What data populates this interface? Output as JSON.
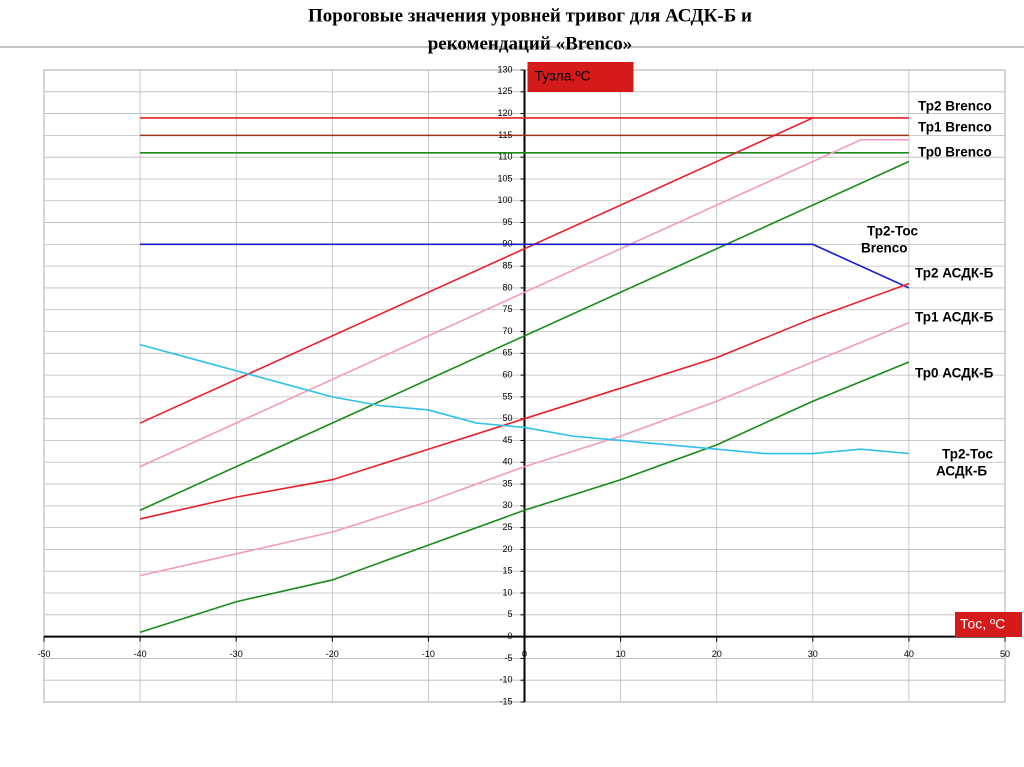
{
  "chart_data": {
    "type": "line",
    "title": [
      "Пороговые значения уровней  тривог для  АСДК-Б и",
      "рекомендаций «Brenco»"
    ],
    "y_label": "Тузла,ºС",
    "x_label": "Тос, ºС",
    "xlim": [
      -50,
      50
    ],
    "xticks": [
      -50,
      -40,
      -30,
      -20,
      -10,
      0,
      10,
      20,
      30,
      40,
      50
    ],
    "ylim": [
      -15,
      130
    ],
    "yticks": [
      -15,
      -10,
      -5,
      0,
      5,
      10,
      15,
      20,
      25,
      30,
      35,
      40,
      45,
      50,
      55,
      60,
      65,
      70,
      75,
      80,
      85,
      90,
      95,
      100,
      105,
      110,
      115,
      120,
      125,
      130
    ],
    "grid": true,
    "axis_color": "#d41a1a",
    "series": [
      {
        "name": [
          "Тр2 Brenco"
        ],
        "color": "#e8202a",
        "x": [
          -40,
          40
        ],
        "values": [
          119,
          119
        ]
      },
      {
        "name": [
          "Тр1 Brenco"
        ],
        "color": "#a0301a",
        "x": [
          -40,
          40
        ],
        "values": [
          115,
          115
        ]
      },
      {
        "name": [
          "Тр0 Brenco"
        ],
        "color": "#1a8a1a",
        "x": [
          -40,
          40
        ],
        "values": [
          111,
          111
        ]
      },
      {
        "color": "#e8202a",
        "x": [
          -40,
          30
        ],
        "values": [
          49,
          119
        ]
      },
      {
        "color": "#f29ac0",
        "x": [
          -40,
          35,
          40
        ],
        "values": [
          39,
          114,
          114
        ]
      },
      {
        "color": "#1a8a1a",
        "x": [
          -40,
          40
        ],
        "values": [
          29,
          109
        ]
      },
      {
        "name": [
          "Тр2-Тос",
          "Brenco"
        ],
        "color": "#1a1ad0",
        "x": [
          -40,
          30,
          40
        ],
        "values": [
          90,
          90,
          80
        ]
      },
      {
        "name": [
          "Тр2 АСДК-Б"
        ],
        "color": "#e8202a",
        "x": [
          -40,
          -30,
          -20,
          -10,
          0,
          10,
          20,
          30,
          40
        ],
        "values": [
          27,
          32,
          36,
          43,
          50,
          57,
          64,
          73,
          81
        ]
      },
      {
        "name": [
          "Тр1 АСДК-Б"
        ],
        "color": "#f29ac0",
        "x": [
          -40,
          -30,
          -20,
          -10,
          0,
          10,
          20,
          30,
          40
        ],
        "values": [
          14,
          19,
          24,
          31,
          39,
          46,
          54,
          63,
          72
        ]
      },
      {
        "name": [
          "Тр0 АСДК-Б"
        ],
        "color": "#1a8a1a",
        "x": [
          -40,
          -30,
          -20,
          -10,
          0,
          10,
          20,
          30,
          40
        ],
        "values": [
          1,
          8,
          13,
          21,
          29,
          36,
          44,
          54,
          63
        ]
      },
      {
        "name": [
          "Тр2-Тос",
          "АСДК-Б"
        ],
        "color": "#30c0e8",
        "x": [
          -40,
          -35,
          -30,
          -25,
          -20,
          -15,
          -10,
          -5,
          0,
          5,
          10,
          15,
          20,
          25,
          30,
          35,
          40
        ],
        "values": [
          67,
          64,
          61,
          58,
          55,
          53,
          52,
          49,
          48,
          46,
          45,
          44,
          43,
          42,
          42,
          43,
          42
        ]
      }
    ]
  }
}
